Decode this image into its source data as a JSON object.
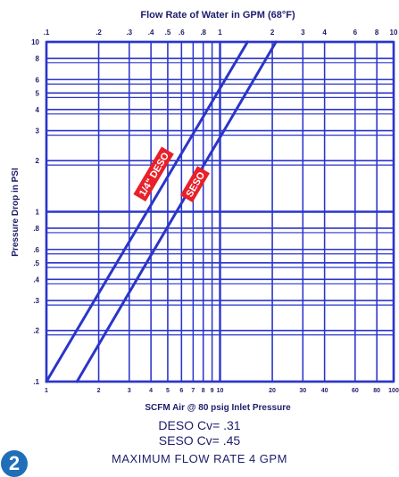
{
  "chart_data": {
    "type": "line",
    "title": "Flow Rate of Water in GPM (68°F)",
    "xlabel": "SCFM Air @ 80 psig Inlet Pressure",
    "ylabel": "Pressure Drop in PSI",
    "x_scale": "log",
    "y_scale": "log",
    "top_axis": {
      "range": [
        0.1,
        10
      ],
      "ticks": [
        0.1,
        0.2,
        0.3,
        0.4,
        0.5,
        0.6,
        0.8,
        1,
        2,
        3,
        4,
        6,
        8,
        10
      ],
      "tick_labels": [
        ".1",
        ".2",
        ".3",
        ".4",
        ".5",
        ".6",
        ".8",
        "1",
        "2",
        "3",
        "4",
        "6",
        "8",
        "10"
      ]
    },
    "bottom_axis": {
      "range": [
        1,
        100
      ],
      "ticks": [
        1,
        2,
        3,
        4,
        5,
        6,
        7,
        8,
        9,
        10,
        20,
        30,
        40,
        60,
        80,
        100
      ],
      "tick_labels": [
        "1",
        "2",
        "3",
        "4",
        "5",
        "6",
        "7",
        "8",
        "9",
        "10",
        "20",
        "30",
        "40",
        "60",
        "80",
        "100"
      ]
    },
    "y_axis": {
      "range": [
        0.1,
        10
      ],
      "ticks": [
        0.1,
        0.2,
        0.3,
        0.4,
        0.5,
        0.6,
        0.8,
        1,
        2,
        3,
        4,
        5,
        6,
        8,
        10
      ],
      "tick_labels": [
        ".1",
        ".2",
        ".3",
        ".4",
        ".5",
        ".6",
        ".8",
        "1",
        "2",
        "3",
        "4",
        "5",
        "6",
        "8",
        "10"
      ]
    },
    "series": [
      {
        "name": "1/4\" DESO",
        "x": [
          0.1,
          1.44
        ],
        "y": [
          0.1,
          10
        ]
      },
      {
        "name": "SESO",
        "x": [
          0.15,
          2.1
        ],
        "y": [
          0.1,
          10
        ]
      }
    ],
    "grid": true
  },
  "captions": {
    "line1": "DESO  Cv=  .31",
    "line2": "SESO  Cv=  .45",
    "line3": "MAXIMUM  FLOW  RATE  4  GPM"
  },
  "badge": "2",
  "colors": {
    "grid": "#2b35c9",
    "text": "#1d1d6b",
    "label_bg": "#e8202a",
    "badge": "#1f6fb8"
  }
}
